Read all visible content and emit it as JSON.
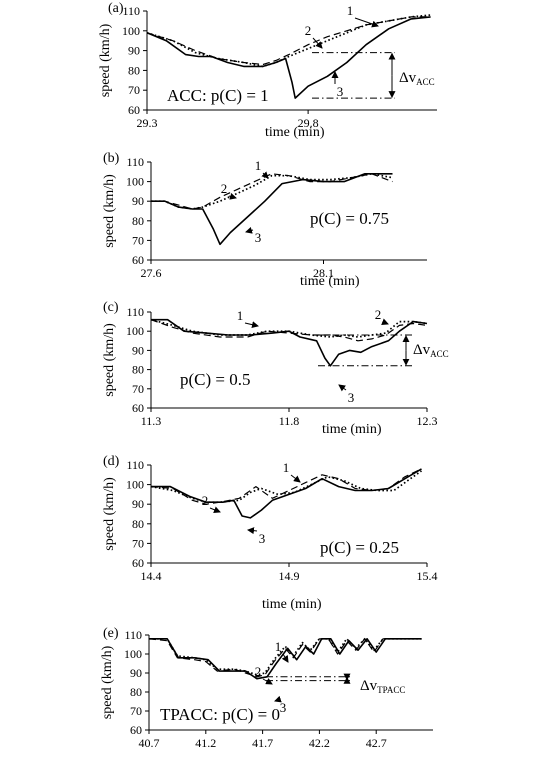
{
  "figure": {
    "panels": [
      {
        "panel_label": "(a)",
        "annotation": "ACC: p(C) = 1",
        "ylabel": "speed (km/h)",
        "xlabel": "time (min)",
        "delta_label": "Δv",
        "delta_sub": "ACC",
        "curve_labels": [
          "1",
          "2",
          "3"
        ]
      },
      {
        "panel_label": "(b)",
        "annotation": "p(C) = 0.75",
        "ylabel": "speed (km/h)",
        "xlabel": "time (min)",
        "delta_label": "",
        "delta_sub": "",
        "curve_labels": [
          "1",
          "2",
          "3"
        ]
      },
      {
        "panel_label": "(c)",
        "annotation": "p(C) = 0.5",
        "ylabel": "speed (km/h)",
        "xlabel": "time (min)",
        "delta_label": "Δv",
        "delta_sub": "ACC",
        "curve_labels": [
          "1",
          "2",
          "3"
        ]
      },
      {
        "panel_label": "(d)",
        "annotation": "p(C) = 0.25",
        "ylabel": "speed (km/h)",
        "xlabel": "time (min)",
        "delta_label": "",
        "delta_sub": "",
        "curve_labels": [
          "1",
          "2",
          "3"
        ]
      },
      {
        "panel_label": "(e)",
        "annotation": "TPACC: p(C) = 0",
        "ylabel": "speed (km/h)",
        "xlabel": "",
        "delta_label": "Δv",
        "delta_sub": "TPACC",
        "curve_labels": [
          "1",
          "2",
          "3"
        ]
      }
    ]
  },
  "chart_data": [
    {
      "type": "line",
      "title": "(a)",
      "xlabel": "time (min)",
      "ylabel": "speed (km/h)",
      "xlim": [
        29.3,
        30.2
      ],
      "ylim": [
        60,
        110
      ],
      "xticks": [
        29.3,
        29.8
      ],
      "yticks": [
        60,
        70,
        80,
        90,
        100,
        110
      ],
      "series": [
        {
          "name": "1",
          "style": "dashed",
          "x": [
            29.3,
            29.38,
            29.45,
            29.52,
            29.6,
            29.66,
            29.7,
            29.74,
            29.8,
            29.86,
            29.92,
            29.98,
            30.05,
            30.12,
            30.18
          ],
          "y": [
            99,
            95,
            90,
            86,
            84,
            83,
            85,
            88,
            93,
            97,
            100,
            103,
            105,
            107,
            107
          ]
        },
        {
          "name": "2",
          "style": "dotted",
          "x": [
            29.3,
            29.38,
            29.45,
            29.52,
            29.6,
            29.66,
            29.7,
            29.74,
            29.8,
            29.86,
            29.92,
            29.98,
            30.05,
            30.12,
            30.18
          ],
          "y": [
            99,
            95,
            89,
            86,
            84,
            82,
            84,
            87,
            91,
            95,
            99,
            103,
            105,
            107,
            108
          ]
        },
        {
          "name": "3",
          "style": "solid",
          "x": [
            29.3,
            29.36,
            29.42,
            29.46,
            29.5,
            29.55,
            29.6,
            29.66,
            29.7,
            29.73,
            29.75,
            29.76,
            29.8,
            29.86,
            29.92,
            29.98,
            30.05,
            30.12,
            30.18
          ],
          "y": [
            99,
            95,
            88,
            87,
            87,
            84,
            82,
            82,
            84,
            86,
            74,
            66,
            72,
            77,
            84,
            93,
            101,
            106,
            107
          ]
        }
      ]
    },
    {
      "type": "line",
      "title": "(b)",
      "xlabel": "time (min)",
      "ylabel": "speed (km/h)",
      "xlim": [
        27.6,
        28.4
      ],
      "ylim": [
        60,
        110
      ],
      "xticks": [
        27.6,
        28.1
      ],
      "yticks": [
        60,
        70,
        80,
        90,
        100,
        110
      ],
      "series": [
        {
          "name": "1",
          "style": "dashed",
          "x": [
            27.6,
            27.64,
            27.68,
            27.72,
            27.75,
            27.8,
            27.85,
            27.9,
            27.95,
            28.0,
            28.06,
            28.12,
            28.18,
            28.24,
            28.3
          ],
          "y": [
            90,
            90,
            88,
            86,
            87,
            92,
            96,
            100,
            104,
            103,
            100,
            100,
            102,
            104,
            100
          ]
        },
        {
          "name": "2",
          "style": "dotted",
          "x": [
            27.6,
            27.64,
            27.68,
            27.72,
            27.75,
            27.8,
            27.85,
            27.9,
            27.95,
            28.0,
            28.06,
            28.12,
            28.18,
            28.24,
            28.3
          ],
          "y": [
            90,
            90,
            87,
            86,
            87,
            90,
            94,
            98,
            103,
            103,
            101,
            101,
            102,
            104,
            102
          ]
        },
        {
          "name": "3",
          "style": "solid",
          "x": [
            27.6,
            27.64,
            27.68,
            27.72,
            27.75,
            27.78,
            27.8,
            27.83,
            27.88,
            27.93,
            27.98,
            28.04,
            28.1,
            28.16,
            28.22,
            28.28,
            28.3
          ],
          "y": [
            90,
            90,
            87,
            86,
            86,
            76,
            68,
            74,
            82,
            90,
            99,
            101,
            100,
            100,
            104,
            104,
            104
          ]
        }
      ]
    },
    {
      "type": "line",
      "title": "(c)",
      "xlabel": "time (min)",
      "ylabel": "speed (km/h)",
      "xlim": [
        11.3,
        12.3
      ],
      "ylim": [
        60,
        110
      ],
      "xticks": [
        11.3,
        11.8,
        12.3
      ],
      "yticks": [
        60,
        70,
        80,
        90,
        100,
        110
      ],
      "series": [
        {
          "name": "1",
          "style": "dashed",
          "x": [
            11.3,
            11.38,
            11.45,
            11.55,
            11.65,
            11.72,
            11.8,
            11.88,
            11.95,
            12.0,
            12.05,
            12.1,
            12.15,
            12.2,
            12.25,
            12.3
          ],
          "y": [
            106,
            102,
            99,
            97,
            97,
            100,
            99,
            98,
            98,
            97,
            95,
            96,
            98,
            103,
            104,
            103
          ]
        },
        {
          "name": "2",
          "style": "dotted",
          "x": [
            11.3,
            11.38,
            11.45,
            11.55,
            11.65,
            11.72,
            11.8,
            11.88,
            11.95,
            12.0,
            12.05,
            12.1,
            12.15,
            12.2,
            12.25,
            12.3
          ],
          "y": [
            106,
            103,
            100,
            98,
            98,
            100,
            100,
            98,
            97,
            98,
            97,
            98,
            99,
            105,
            105,
            104
          ]
        },
        {
          "name": "3",
          "style": "solid",
          "x": [
            11.3,
            11.36,
            11.42,
            11.5,
            11.58,
            11.66,
            11.74,
            11.8,
            11.84,
            11.9,
            11.93,
            11.95,
            11.98,
            12.02,
            12.06,
            12.1,
            12.16,
            12.2,
            12.25,
            12.3
          ],
          "y": [
            106,
            106,
            100,
            99,
            98,
            98,
            99,
            100,
            97,
            95,
            86,
            82,
            88,
            90,
            89,
            92,
            95,
            100,
            105,
            104
          ]
        }
      ]
    },
    {
      "type": "line",
      "title": "(d)",
      "xlabel": "time (min)",
      "ylabel": "speed (km/h)",
      "xlim": [
        14.4,
        15.4
      ],
      "ylim": [
        60,
        110
      ],
      "xticks": [
        14.4,
        14.9,
        15.4
      ],
      "yticks": [
        60,
        70,
        80,
        90,
        100,
        110
      ],
      "series": [
        {
          "name": "1",
          "style": "dashed",
          "x": [
            14.4,
            14.48,
            14.55,
            14.6,
            14.65,
            14.72,
            14.78,
            14.84,
            14.9,
            14.96,
            15.02,
            15.08,
            15.14,
            15.2,
            15.26,
            15.32,
            15.38
          ],
          "y": [
            99,
            98,
            92,
            90,
            91,
            93,
            99,
            93,
            97,
            101,
            105,
            103,
            98,
            97,
            98,
            104,
            108
          ]
        },
        {
          "name": "2",
          "style": "dotted",
          "x": [
            14.4,
            14.48,
            14.55,
            14.6,
            14.65,
            14.72,
            14.76,
            14.8,
            14.86,
            14.92,
            14.98,
            15.04,
            15.1,
            15.16,
            15.22,
            15.28,
            15.34,
            15.38
          ],
          "y": [
            99,
            97,
            93,
            91,
            91,
            92,
            96,
            98,
            95,
            96,
            100,
            104,
            102,
            98,
            97,
            97,
            103,
            107
          ]
        },
        {
          "name": "3",
          "style": "solid",
          "x": [
            14.4,
            14.47,
            14.54,
            14.6,
            14.66,
            14.7,
            14.73,
            14.76,
            14.8,
            14.84,
            14.9,
            14.96,
            15.02,
            15.08,
            15.14,
            15.2,
            15.26,
            15.32,
            15.38
          ],
          "y": [
            99,
            99,
            94,
            91,
            91,
            92,
            84,
            83,
            87,
            92,
            95,
            98,
            103,
            99,
            97,
            97,
            98,
            103,
            108
          ]
        }
      ]
    },
    {
      "type": "line",
      "title": "(e)",
      "xlabel": "",
      "ylabel": "speed (km/h)",
      "xlim": [
        40.7,
        43.2
      ],
      "ylim": [
        60,
        110
      ],
      "xticks": [
        40.7,
        41.2,
        41.7,
        42.2,
        42.7
      ],
      "yticks": [
        60,
        70,
        80,
        90,
        100,
        110
      ],
      "series": [
        {
          "name": "1",
          "style": "dashed",
          "x": [
            40.7,
            40.86,
            40.95,
            41.1,
            41.2,
            41.3,
            41.45,
            41.55,
            41.65,
            41.72,
            41.8,
            41.9,
            41.97,
            42.05,
            42.12,
            42.2,
            42.28,
            42.36,
            42.44,
            42.52,
            42.6,
            42.68,
            42.76,
            43.1
          ],
          "y": [
            108,
            107,
            98,
            97,
            96,
            91,
            92,
            90,
            88,
            89,
            96,
            103,
            98,
            105,
            101,
            108,
            108,
            100,
            107,
            102,
            108,
            101,
            108,
            108
          ]
        },
        {
          "name": "2",
          "style": "dotted",
          "x": [
            40.7,
            40.86,
            40.95,
            41.1,
            41.2,
            41.3,
            41.45,
            41.55,
            41.65,
            41.72,
            41.8,
            41.9,
            41.97,
            42.05,
            42.12,
            42.2,
            42.28,
            42.36,
            42.44,
            42.52,
            42.6,
            42.68,
            42.76,
            43.1
          ],
          "y": [
            108,
            108,
            99,
            98,
            97,
            92,
            92,
            91,
            89,
            90,
            97,
            104,
            99,
            106,
            102,
            108,
            108,
            101,
            108,
            103,
            108,
            102,
            108,
            108
          ]
        },
        {
          "name": "3",
          "style": "solid",
          "x": [
            40.7,
            40.86,
            40.96,
            41.1,
            41.22,
            41.32,
            41.45,
            41.55,
            41.65,
            41.74,
            41.82,
            41.92,
            42.0,
            42.08,
            42.15,
            42.22,
            42.3,
            42.38,
            42.46,
            42.54,
            42.62,
            42.7,
            42.78,
            43.1
          ],
          "y": [
            108,
            108,
            98,
            98,
            97,
            91,
            91,
            91,
            87,
            88,
            95,
            103,
            97,
            104,
            100,
            108,
            108,
            100,
            107,
            102,
            108,
            101,
            108,
            108
          ]
        }
      ]
    }
  ]
}
